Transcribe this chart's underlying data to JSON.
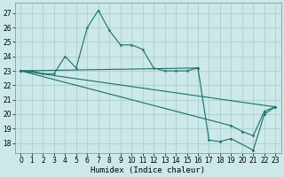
{
  "xlabel": "Humidex (Indice chaleur)",
  "background_color": "#cce8e8",
  "grid_color": "#aacfcf",
  "line_color": "#1a6e6a",
  "xlim": [
    -0.5,
    23.5
  ],
  "ylim": [
    17.3,
    27.7
  ],
  "yticks": [
    18,
    19,
    20,
    21,
    22,
    23,
    24,
    25,
    26,
    27
  ],
  "xticks": [
    0,
    1,
    2,
    3,
    4,
    5,
    6,
    7,
    8,
    9,
    10,
    11,
    12,
    13,
    14,
    15,
    16,
    17,
    18,
    19,
    20,
    21,
    22,
    23
  ],
  "series1_x": [
    0,
    1,
    2,
    3,
    4,
    5,
    6,
    7,
    8,
    9,
    10,
    11,
    12,
    13,
    14,
    15,
    16
  ],
  "series1_y": [
    23.0,
    23.0,
    22.8,
    22.8,
    24.0,
    23.2,
    26.0,
    27.2,
    25.8,
    24.8,
    24.8,
    24.5,
    23.2,
    23.0,
    23.0,
    23.0,
    23.2
  ],
  "series2_x": [
    0,
    16,
    17,
    18,
    19,
    21,
    22,
    23
  ],
  "series2_y": [
    23.0,
    23.2,
    18.2,
    18.1,
    18.3,
    17.5,
    20.0,
    20.5
  ],
  "series3_x": [
    0,
    19,
    20,
    21,
    22,
    23
  ],
  "series3_y": [
    23.0,
    19.2,
    18.8,
    18.5,
    20.2,
    20.5
  ],
  "series4_x": [
    0,
    23
  ],
  "series4_y": [
    23.0,
    20.5
  ]
}
